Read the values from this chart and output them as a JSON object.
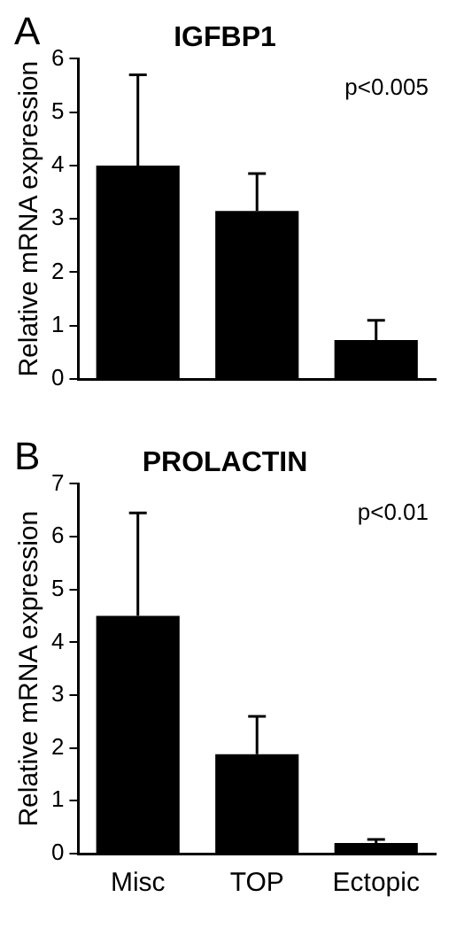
{
  "chart_data": [
    {
      "type": "bar",
      "title": "IGFBP1",
      "ylabel": "Relative mRNA expression",
      "categories": [
        null,
        null,
        null
      ],
      "values": [
        4.0,
        3.15,
        0.73
      ],
      "color": "#000000",
      "errors": [
        [
          4.0,
          5.7
        ],
        [
          3.15,
          3.85
        ],
        [
          0.73,
          1.1
        ]
      ],
      "ylim": [
        0,
        6
      ],
      "yticks": [
        0,
        1,
        2,
        3,
        4,
        5,
        6
      ],
      "grid": false,
      "legend": false,
      "annotations": [
        "A",
        "p<0.005"
      ]
    },
    {
      "type": "bar",
      "title": "PROLACTIN",
      "ylabel": "Relative mRNA expression",
      "categories": [
        "Misc",
        "TOP",
        "Ectopic"
      ],
      "values": [
        4.5,
        1.88,
        0.2
      ],
      "color": "#000000",
      "errors": [
        [
          4.5,
          6.45
        ],
        [
          1.88,
          2.6
        ],
        [
          0.2,
          0.27
        ]
      ],
      "ylim": [
        0,
        7
      ],
      "yticks": [
        0,
        1,
        2,
        3,
        4,
        5,
        6,
        7
      ],
      "grid": false,
      "legend": false,
      "annotations": [
        "B",
        "p<0.01"
      ]
    }
  ]
}
